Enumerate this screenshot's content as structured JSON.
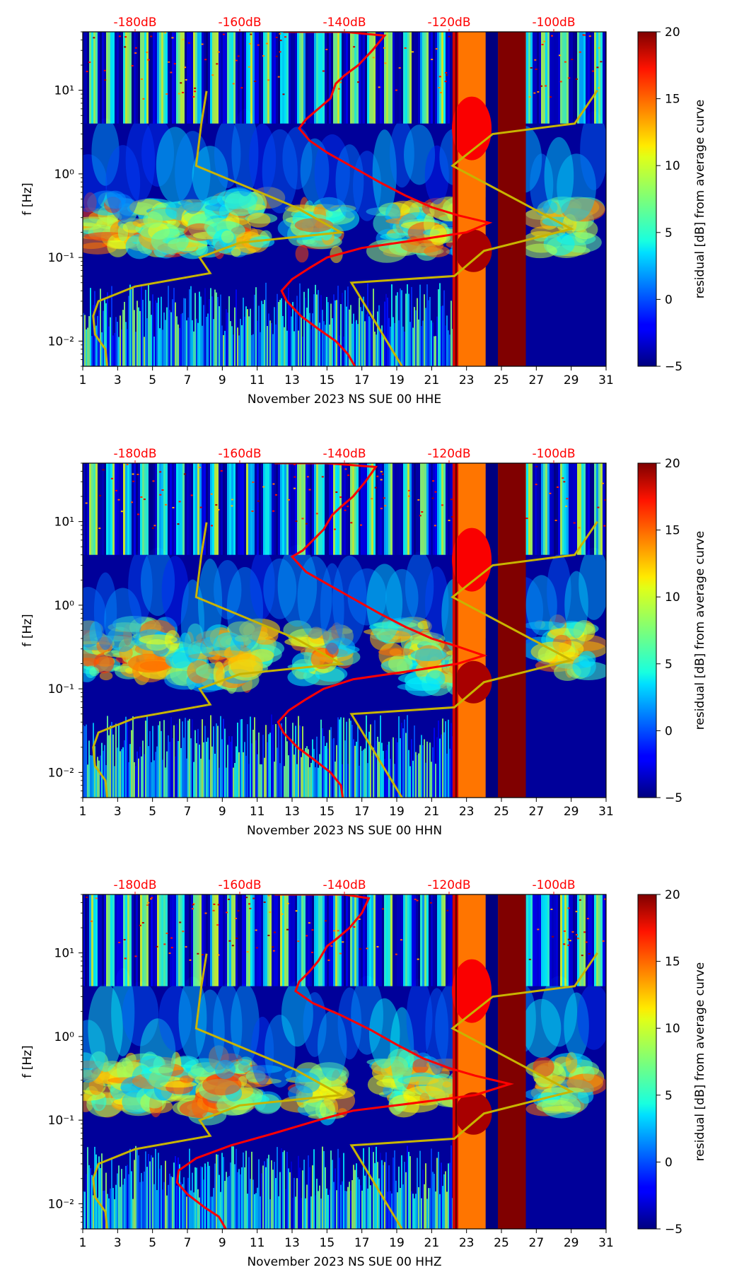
{
  "chart_data": [
    {
      "type": "heatmap",
      "title": "",
      "xlabel": "November 2023 NS SUE 00 HHE",
      "ylabel": "f [Hz]",
      "x_ticks": [
        "1",
        "3",
        "5",
        "7",
        "9",
        "11",
        "13",
        "15",
        "17",
        "19",
        "21",
        "23",
        "25",
        "27",
        "29",
        "31"
      ],
      "xlim": [
        1,
        31
      ],
      "y_ticks": [
        "10⁻²",
        "10⁻¹",
        "10⁰",
        "10¹"
      ],
      "ylim": [
        0.005,
        50
      ],
      "yscale": "log",
      "db_ticks": [
        "-180dB",
        "-160dB",
        "-140dB",
        "-120dB",
        "-100dB"
      ],
      "db_positions_day": [
        4.0,
        10.0,
        16.0,
        22.0,
        28.0
      ],
      "colorbar": {
        "label": "residual [dB] from average curve",
        "ticks": [
          "−5",
          "0",
          "5",
          "10",
          "15",
          "20"
        ],
        "range": [
          -5,
          20
        ]
      },
      "bands": [
        {
          "name": "saturated",
          "day_start": 22.2,
          "day_end": 24.1,
          "level": 14
        },
        {
          "name": "gap-low",
          "day_start": 24.1,
          "day_end": 24.8,
          "level": -5
        },
        {
          "name": "gap-high",
          "day_start": 24.8,
          "day_end": 26.4,
          "level": 20
        }
      ],
      "red_curve": {
        "name": "median PSD (dB)",
        "points": [
          [
            12.5,
            50
          ],
          [
            16,
            50
          ],
          [
            18.3,
            45
          ],
          [
            17.6,
            30
          ],
          [
            16.8,
            20
          ],
          [
            16,
            15
          ],
          [
            15.5,
            12
          ],
          [
            15.2,
            8
          ],
          [
            14.5,
            6
          ],
          [
            13.8,
            4.5
          ],
          [
            13.4,
            3.5
          ],
          [
            14,
            2.5
          ],
          [
            15,
            1.8
          ],
          [
            16.5,
            1.2
          ],
          [
            18,
            0.8
          ],
          [
            19.5,
            0.55
          ],
          [
            21,
            0.4
          ],
          [
            22.5,
            0.32
          ],
          [
            24.3,
            0.26
          ],
          [
            23,
            0.2
          ],
          [
            20,
            0.16
          ],
          [
            17,
            0.13
          ],
          [
            15,
            0.1
          ],
          [
            14,
            0.075
          ],
          [
            13,
            0.055
          ],
          [
            12.4,
            0.04
          ],
          [
            12.7,
            0.03
          ],
          [
            13.5,
            0.02
          ],
          [
            14.5,
            0.014
          ],
          [
            15.5,
            0.01
          ],
          [
            16.2,
            0.007
          ],
          [
            16.6,
            0.005
          ]
        ]
      },
      "yellow_curve": {
        "name": "noise model (dB)",
        "points": [
          [
            2.4,
            0.005
          ],
          [
            2.3,
            0.008
          ],
          [
            1.7,
            0.012
          ],
          [
            1.6,
            0.02
          ],
          [
            1.9,
            0.03
          ],
          [
            4,
            0.045
          ],
          [
            8.3,
            0.065
          ],
          [
            7.7,
            0.1
          ],
          [
            10,
            0.15
          ],
          [
            15.8,
            0.2
          ],
          [
            13.2,
            0.4
          ],
          [
            7.5,
            1.25
          ],
          [
            7.8,
            4
          ],
          [
            8.1,
            9.8
          ]
        ]
      },
      "yellow_curve_2": {
        "name": "noise model high (dB)",
        "points": [
          [
            19.3,
            0.005
          ],
          [
            16.4,
            0.05
          ],
          [
            22.3,
            0.06
          ],
          [
            24,
            0.12
          ],
          [
            29,
            0.22
          ],
          [
            22.2,
            1.25
          ],
          [
            24.5,
            3
          ],
          [
            29.2,
            4
          ],
          [
            30.5,
            10
          ]
        ]
      }
    },
    {
      "type": "heatmap",
      "title": "",
      "xlabel": "November 2023 NS SUE 00 HHN",
      "ylabel": "f [Hz]",
      "x_ticks": [
        "1",
        "3",
        "5",
        "7",
        "9",
        "11",
        "13",
        "15",
        "17",
        "19",
        "21",
        "23",
        "25",
        "27",
        "29",
        "31"
      ],
      "xlim": [
        1,
        31
      ],
      "y_ticks": [
        "10⁻²",
        "10⁻¹",
        "10⁰",
        "10¹"
      ],
      "ylim": [
        0.005,
        50
      ],
      "yscale": "log",
      "db_ticks": [
        "-180dB",
        "-160dB",
        "-140dB",
        "-120dB",
        "-100dB"
      ],
      "db_positions_day": [
        4.0,
        10.0,
        16.0,
        22.0,
        28.0
      ],
      "colorbar": {
        "label": "residual [dB] from average curve",
        "ticks": [
          "−5",
          "0",
          "5",
          "10",
          "15",
          "20"
        ],
        "range": [
          -5,
          20
        ]
      },
      "bands": [
        {
          "name": "saturated",
          "day_start": 22.2,
          "day_end": 24.1,
          "level": 14
        },
        {
          "name": "gap-low",
          "day_start": 24.1,
          "day_end": 24.8,
          "level": -5
        },
        {
          "name": "gap-high",
          "day_start": 24.8,
          "day_end": 26.4,
          "level": 20
        }
      ],
      "red_curve": {
        "name": "median PSD (dB)",
        "points": [
          [
            12,
            50
          ],
          [
            15,
            50
          ],
          [
            17.8,
            45
          ],
          [
            17.2,
            30
          ],
          [
            16.5,
            20
          ],
          [
            15.8,
            15
          ],
          [
            15.3,
            12
          ],
          [
            14.8,
            8
          ],
          [
            14.2,
            6
          ],
          [
            13.6,
            4.5
          ],
          [
            13,
            3.8
          ],
          [
            13.8,
            2.5
          ],
          [
            15,
            1.8
          ],
          [
            16.5,
            1.2
          ],
          [
            18,
            0.8
          ],
          [
            19.5,
            0.55
          ],
          [
            21,
            0.4
          ],
          [
            22.5,
            0.32
          ],
          [
            24,
            0.25
          ],
          [
            22.5,
            0.2
          ],
          [
            19.5,
            0.16
          ],
          [
            16.5,
            0.13
          ],
          [
            14.8,
            0.1
          ],
          [
            13.8,
            0.075
          ],
          [
            12.8,
            0.055
          ],
          [
            12.2,
            0.04
          ],
          [
            12.5,
            0.03
          ],
          [
            13.3,
            0.02
          ],
          [
            14.3,
            0.014
          ],
          [
            15.2,
            0.01
          ],
          [
            15.8,
            0.007
          ],
          [
            15.9,
            0.005
          ]
        ]
      },
      "yellow_curve": {
        "name": "noise model (dB)",
        "points": [
          [
            2.4,
            0.005
          ],
          [
            2.3,
            0.008
          ],
          [
            1.7,
            0.012
          ],
          [
            1.6,
            0.02
          ],
          [
            1.9,
            0.03
          ],
          [
            4,
            0.045
          ],
          [
            8.3,
            0.065
          ],
          [
            7.7,
            0.1
          ],
          [
            10,
            0.15
          ],
          [
            15.8,
            0.2
          ],
          [
            13.2,
            0.4
          ],
          [
            7.5,
            1.25
          ],
          [
            7.8,
            4
          ],
          [
            8.1,
            9.8
          ]
        ]
      },
      "yellow_curve_2": {
        "name": "noise model high (dB)",
        "points": [
          [
            19.3,
            0.005
          ],
          [
            16.4,
            0.05
          ],
          [
            22.3,
            0.06
          ],
          [
            24,
            0.12
          ],
          [
            29,
            0.22
          ],
          [
            22.2,
            1.25
          ],
          [
            24.5,
            3
          ],
          [
            29.2,
            4
          ],
          [
            30.5,
            10
          ]
        ]
      }
    },
    {
      "type": "heatmap",
      "title": "",
      "xlabel": "November 2023 NS SUE 00 HHZ",
      "ylabel": "f [Hz]",
      "x_ticks": [
        "1",
        "3",
        "5",
        "7",
        "9",
        "11",
        "13",
        "15",
        "17",
        "19",
        "21",
        "23",
        "25",
        "27",
        "29",
        "31"
      ],
      "xlim": [
        1,
        31
      ],
      "y_ticks": [
        "10⁻²",
        "10⁻¹",
        "10⁰",
        "10¹"
      ],
      "ylim": [
        0.005,
        50
      ],
      "yscale": "log",
      "db_ticks": [
        "-180dB",
        "-160dB",
        "-140dB",
        "-120dB",
        "-100dB"
      ],
      "db_positions_day": [
        4.0,
        10.0,
        16.0,
        22.0,
        28.0
      ],
      "colorbar": {
        "label": "residual [dB] from average curve",
        "ticks": [
          "−5",
          "0",
          "5",
          "10",
          "15",
          "20"
        ],
        "range": [
          -5,
          20
        ]
      },
      "bands": [
        {
          "name": "saturated",
          "day_start": 22.2,
          "day_end": 24.1,
          "level": 14
        },
        {
          "name": "gap-low",
          "day_start": 24.1,
          "day_end": 24.8,
          "level": -5
        },
        {
          "name": "gap-high",
          "day_start": 24.8,
          "day_end": 26.4,
          "level": 20
        }
      ],
      "red_curve": {
        "name": "median PSD (dB)",
        "points": [
          [
            12,
            50
          ],
          [
            16,
            50
          ],
          [
            17.4,
            45
          ],
          [
            17,
            30
          ],
          [
            16.3,
            20
          ],
          [
            15.6,
            15
          ],
          [
            15,
            12
          ],
          [
            14.5,
            8
          ],
          [
            14,
            6
          ],
          [
            13.4,
            4.5
          ],
          [
            13.2,
            3.5
          ],
          [
            14.2,
            2.5
          ],
          [
            15.8,
            1.8
          ],
          [
            17.5,
            1.2
          ],
          [
            19,
            0.8
          ],
          [
            20.5,
            0.55
          ],
          [
            22,
            0.42
          ],
          [
            23.5,
            0.34
          ],
          [
            25.5,
            0.27
          ],
          [
            23.5,
            0.2
          ],
          [
            20,
            0.16
          ],
          [
            16.5,
            0.13
          ],
          [
            14.5,
            0.1
          ],
          [
            12,
            0.07
          ],
          [
            9.5,
            0.05
          ],
          [
            7.5,
            0.035
          ],
          [
            6.5,
            0.025
          ],
          [
            6.4,
            0.018
          ],
          [
            7,
            0.013
          ],
          [
            8,
            0.009
          ],
          [
            8.8,
            0.007
          ],
          [
            9.2,
            0.005
          ]
        ]
      },
      "yellow_curve": {
        "name": "noise model (dB)",
        "points": [
          [
            2.4,
            0.005
          ],
          [
            2.3,
            0.008
          ],
          [
            1.7,
            0.012
          ],
          [
            1.6,
            0.02
          ],
          [
            1.9,
            0.03
          ],
          [
            4,
            0.045
          ],
          [
            8.3,
            0.065
          ],
          [
            7.7,
            0.1
          ],
          [
            10,
            0.15
          ],
          [
            15.8,
            0.2
          ],
          [
            13.2,
            0.4
          ],
          [
            7.5,
            1.25
          ],
          [
            7.8,
            4
          ],
          [
            8.1,
            9.8
          ]
        ]
      },
      "yellow_curve_2": {
        "name": "noise model high (dB)",
        "points": [
          [
            19.3,
            0.005
          ],
          [
            16.4,
            0.05
          ],
          [
            22.3,
            0.06
          ],
          [
            24,
            0.12
          ],
          [
            29,
            0.22
          ],
          [
            22.2,
            1.25
          ],
          [
            24.5,
            3
          ],
          [
            29.2,
            4
          ],
          [
            30.5,
            10
          ]
        ]
      }
    }
  ]
}
